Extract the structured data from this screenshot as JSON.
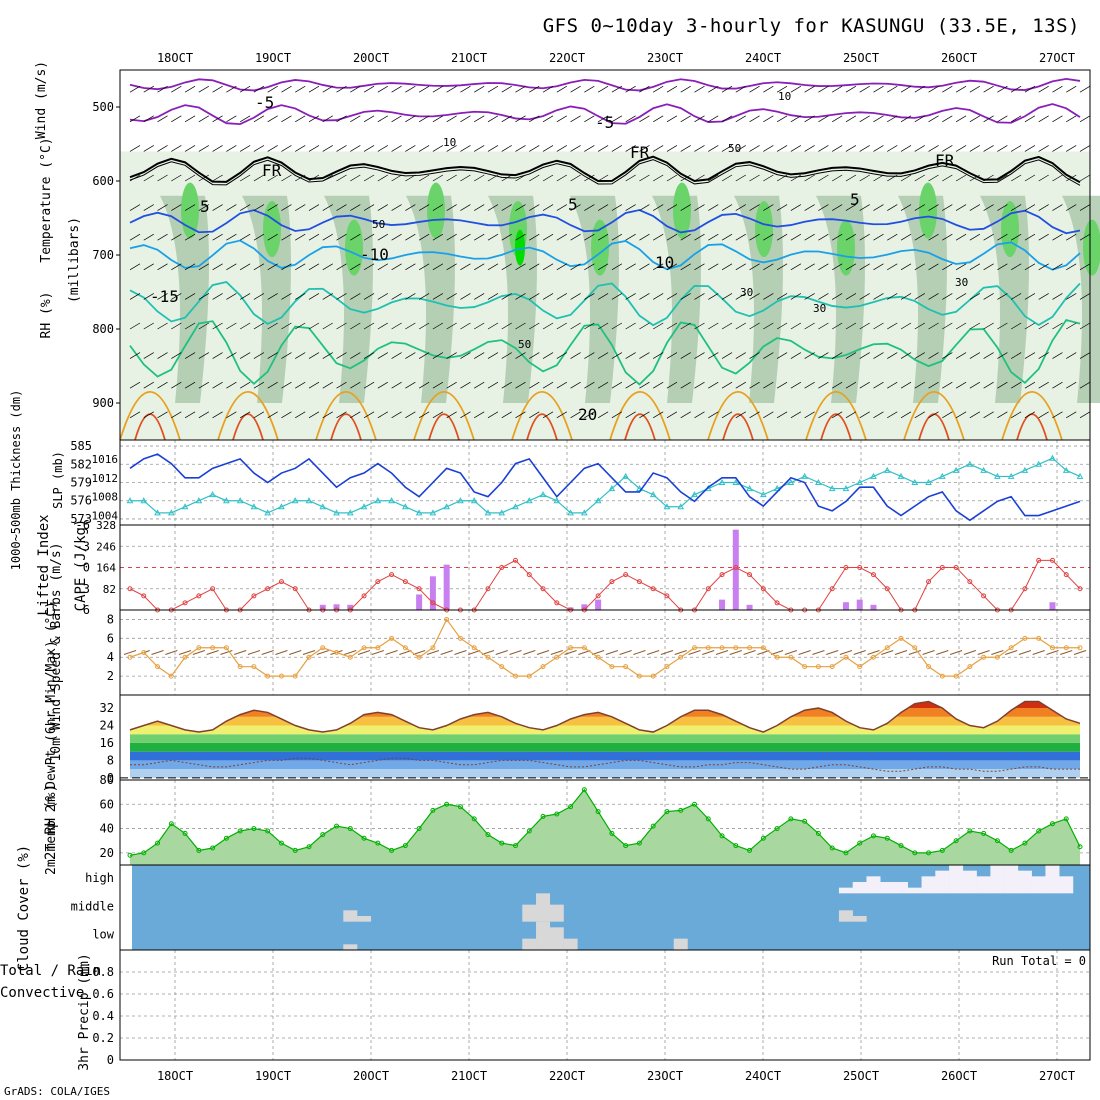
{
  "title": "GFS 0~10day 3-hourly for KASUNGU (33.5E, 13S)",
  "credit": "GrADS: COLA/IGES",
  "colors": {
    "rh_light": "#e7f2e4",
    "rh_mid": "#c5d9c4",
    "rh_dark": "#a9c6a9",
    "rh_green": "#6ad46a",
    "rh_bright": "#00dc00",
    "temp_purple": "#8a1fb8",
    "temp_blue": "#2050e0",
    "temp_lightblue": "#1aa0e8",
    "temp_teal": "#20c0b0",
    "temp_green": "#20c080",
    "temp_orange": "#e8a020",
    "temp_red": "#e05020",
    "fr_line": "#000000",
    "slp": "#1a3fd6",
    "thickness": "#30c0c8",
    "lifted": "#e04040",
    "cape": "#c880f0",
    "wind_speed": "#e8a040",
    "barb": "#8b5a2b",
    "rh2m": "#00b000",
    "cloud": "#6aaad8",
    "cloud_gap": "#d8d8d8"
  },
  "chart_data": [
    {
      "panel": "upper-air",
      "type": "heatmap",
      "date_labels": [
        "18OCT",
        "19OCT",
        "20OCT",
        "21OCT",
        "22OCT",
        "23OCT",
        "24OCT",
        "25OCT",
        "26OCT",
        "27OCT"
      ],
      "ylabel_wind": "Wind (m/s)",
      "ylabel_temp": "Temperature (°C)",
      "ylabel_rh": "RH (%)",
      "ylabel_p": "(millibars)",
      "yticks": [
        500,
        600,
        700,
        800,
        900
      ],
      "ylim": [
        450,
        950
      ],
      "contour_labels": [
        "-5",
        "-5",
        "5",
        "5",
        "5",
        "-10",
        "10",
        "-15",
        "20",
        "FR",
        "FR",
        "FR",
        "10",
        "30",
        "30",
        "30",
        "50",
        "50",
        "50",
        "10"
      ],
      "temp_lines": [
        {
          "label": "-5",
          "color": "purple",
          "base": 470,
          "amp": 8
        },
        {
          "label": "-5",
          "color": "purple",
          "base": 510,
          "amp": 14
        },
        {
          "label": "FR",
          "color": "black",
          "base": 585,
          "amp": 18
        },
        {
          "label": "5",
          "color": "blue",
          "base": 655,
          "amp": 16
        },
        {
          "label": "10",
          "color": "lightblue",
          "base": 700,
          "amp": 20
        },
        {
          "label": "-15",
          "color": "teal",
          "base": 765,
          "amp": 30
        },
        {
          "label": "20",
          "color": "green",
          "base": 830,
          "amp": 45
        }
      ]
    },
    {
      "panel": "slp-thickness",
      "type": "line",
      "ylabel_left": "1000~500mb Thickness (dm)",
      "ylabel_right": "SLP (mb)",
      "yticks_thickness": [
        573,
        576,
        579,
        582,
        585
      ],
      "yticks_slp": [
        1004,
        1008,
        1012,
        1016
      ],
      "ylim_thickness": [
        572,
        586
      ],
      "ylim_slp": [
        1002,
        1020
      ],
      "series": [
        {
          "name": "SLP",
          "axis": "slp",
          "values": [
            1014,
            1016,
            1017,
            1015,
            1012,
            1012,
            1014,
            1015,
            1016,
            1013,
            1011,
            1013,
            1014,
            1016,
            1013,
            1010,
            1012,
            1013,
            1015,
            1013,
            1010,
            1008,
            1011,
            1014,
            1013,
            1009,
            1008,
            1011,
            1015,
            1016,
            1012,
            1008,
            1011,
            1014,
            1015,
            1012,
            1009,
            1009,
            1013,
            1012,
            1009,
            1007,
            1010,
            1012,
            1012,
            1008,
            1006,
            1009,
            1012,
            1011,
            1006,
            1005,
            1007,
            1010,
            1010,
            1006,
            1004,
            1006,
            1008,
            1009,
            1005,
            1003,
            1005,
            1007,
            1008,
            1004,
            1004,
            1005,
            1006,
            1007
          ]
        },
        {
          "name": "Thickness",
          "axis": "thickness",
          "values": [
            576,
            576,
            574,
            574,
            575,
            576,
            577,
            576,
            576,
            575,
            574,
            575,
            576,
            576,
            575,
            574,
            574,
            575,
            576,
            576,
            575,
            574,
            574,
            575,
            576,
            576,
            574,
            574,
            575,
            576,
            577,
            576,
            574,
            574,
            576,
            578,
            580,
            578,
            577,
            575,
            575,
            577,
            578,
            579,
            579,
            578,
            577,
            578,
            579,
            580,
            579,
            578,
            578,
            579,
            580,
            581,
            580,
            579,
            579,
            580,
            581,
            582,
            581,
            580,
            580,
            581,
            582,
            583,
            581,
            580
          ]
        }
      ]
    },
    {
      "panel": "lifted-cape",
      "type": "bar",
      "ylabel_left": "Lifted Index",
      "ylabel_right": "CAPE (J/kg)",
      "yticks_li": [
        "-6",
        "-3",
        "0",
        "3",
        "6"
      ],
      "yticks_cape": [
        "328",
        "246",
        "164",
        "82"
      ],
      "ylim_li": [
        -6,
        6
      ],
      "ylim_cape": [
        0,
        328
      ],
      "series": [
        {
          "name": "Lifted Index",
          "values": [
            3,
            4,
            6,
            6,
            5,
            4,
            3,
            6,
            6,
            4,
            3,
            2,
            3,
            6,
            6,
            6,
            6,
            4,
            2,
            1,
            2,
            3,
            5,
            6,
            6,
            6,
            3,
            0,
            -1,
            1,
            3,
            5,
            6,
            6,
            4,
            2,
            1,
            2,
            3,
            4,
            6,
            6,
            3,
            1,
            0,
            1,
            3,
            5,
            6,
            6,
            6,
            3,
            0,
            0,
            1,
            3,
            6,
            6,
            2,
            0,
            0,
            2,
            4,
            6,
            6,
            3,
            -1,
            -1,
            1,
            3
          ]
        },
        {
          "name": "CAPE",
          "values": [
            0,
            0,
            0,
            0,
            0,
            0,
            0,
            0,
            0,
            0,
            0,
            0,
            0,
            0,
            20,
            22,
            20,
            0,
            0,
            0,
            0,
            60,
            130,
            175,
            0,
            0,
            0,
            0,
            0,
            0,
            0,
            0,
            10,
            22,
            40,
            0,
            0,
            0,
            0,
            0,
            0,
            0,
            0,
            40,
            310,
            20,
            0,
            0,
            0,
            0,
            0,
            0,
            30,
            40,
            20,
            0,
            0,
            0,
            0,
            0,
            0,
            0,
            0,
            0,
            0,
            0,
            0,
            30,
            0,
            0
          ]
        }
      ]
    },
    {
      "panel": "wind",
      "type": "line",
      "ylabel": "10m Wind Speed & Barbs (m/s)",
      "yticks": [
        2,
        4,
        6,
        8
      ],
      "ylim": [
        0,
        9
      ],
      "series": [
        {
          "name": "10m Wind Speed",
          "values": [
            4,
            4.5,
            3,
            2,
            4,
            5,
            5,
            5,
            3,
            3,
            2,
            2,
            2,
            4,
            5,
            4.5,
            4,
            5,
            5,
            6,
            5,
            4,
            5,
            8,
            6,
            5,
            4,
            3,
            2,
            2,
            3,
            4,
            5,
            5,
            4,
            3,
            3,
            2,
            2,
            3,
            4,
            5,
            5,
            5,
            5,
            5,
            5,
            4,
            4,
            3,
            3,
            3,
            4,
            3,
            4,
            5,
            6,
            5,
            3,
            2,
            2,
            3,
            4,
            4,
            5,
            6,
            6,
            5,
            5,
            5
          ]
        },
        {
          "name": "Barb",
          "values": [
            4.5,
            4.5,
            4.5,
            4.5,
            4.5,
            4.5,
            4.5,
            4.5,
            4.5,
            4.5,
            4.5,
            4.5,
            4.5,
            4.5,
            4.5,
            4.5,
            4.5,
            4.5,
            4.5,
            4.5,
            4.5,
            4.5,
            4.5,
            4.5,
            4.5,
            4.5,
            4.5,
            4.5,
            4.5,
            4.5,
            4.5,
            4.5,
            4.5,
            4.5,
            4.5,
            4.5,
            4.5,
            4.5,
            4.5,
            4.5,
            4.5,
            4.5,
            4.5,
            4.5,
            4.5,
            4.5,
            4.5,
            4.5,
            4.5,
            4.5,
            4.5,
            4.5,
            4.5,
            4.5,
            4.5,
            4.5,
            4.5,
            4.5,
            4.5,
            4.5,
            4.5,
            4.5,
            4.5,
            4.5,
            4.5,
            4.5,
            4.5,
            4.5,
            4.5,
            4.5
          ]
        }
      ]
    },
    {
      "panel": "temperature",
      "type": "area",
      "ylabel": "2m Temp 2m DewPt (6hr Min/Max) (°C)",
      "yticks": [
        0,
        8,
        16,
        24,
        32
      ],
      "ylim": [
        -1,
        38
      ],
      "series": [
        {
          "name": "2m Temp",
          "values": [
            22,
            24,
            26,
            24,
            22,
            21,
            22,
            26,
            29,
            31,
            30,
            27,
            24,
            22,
            21,
            22,
            25,
            29,
            30,
            29,
            26,
            23,
            22,
            24,
            27,
            29,
            30,
            28,
            25,
            23,
            22,
            24,
            27,
            29,
            30,
            28,
            25,
            22,
            21,
            24,
            28,
            31,
            31,
            29,
            26,
            23,
            21,
            24,
            28,
            31,
            32,
            30,
            26,
            23,
            22,
            25,
            30,
            34,
            35,
            32,
            27,
            24,
            23,
            26,
            31,
            35,
            35,
            31,
            27,
            25
          ]
        },
        {
          "name": "2m DewPt",
          "values": [
            6,
            6,
            7,
            8,
            7,
            6,
            5,
            5,
            6,
            7,
            8,
            8,
            9,
            9,
            8,
            7,
            6,
            7,
            8,
            9,
            9,
            8,
            8,
            7,
            6,
            6,
            7,
            8,
            8,
            8,
            7,
            6,
            5,
            5,
            6,
            7,
            8,
            8,
            7,
            6,
            5,
            5,
            6,
            6,
            7,
            7,
            6,
            5,
            4,
            4,
            5,
            6,
            6,
            5,
            4,
            3,
            3,
            4,
            5,
            5,
            4,
            4,
            3,
            3,
            4,
            5,
            5,
            4,
            4,
            4
          ]
        }
      ]
    },
    {
      "panel": "rh2m",
      "type": "area",
      "ylabel": "2m RH (%)",
      "yticks": [
        20,
        40,
        60,
        80
      ],
      "ylim": [
        10,
        80
      ],
      "series": [
        {
          "name": "2m RH",
          "values": [
            18,
            20,
            28,
            44,
            36,
            22,
            24,
            32,
            38,
            40,
            38,
            28,
            22,
            25,
            35,
            42,
            40,
            32,
            28,
            22,
            26,
            40,
            55,
            60,
            58,
            48,
            35,
            28,
            26,
            38,
            50,
            52,
            58,
            72,
            54,
            36,
            26,
            28,
            42,
            54,
            55,
            60,
            48,
            34,
            26,
            22,
            32,
            40,
            48,
            46,
            36,
            24,
            20,
            28,
            34,
            32,
            26,
            20,
            20,
            22,
            30,
            38,
            36,
            30,
            22,
            28,
            38,
            44,
            48,
            25
          ]
        }
      ]
    },
    {
      "panel": "cloud",
      "type": "bar",
      "ylabel": "Cloud Cover (%)",
      "row_labels": [
        "high",
        "middle",
        "low"
      ],
      "series": [
        {
          "name": "high",
          "values": [
            0,
            0,
            0,
            0,
            0,
            0,
            0,
            0,
            0,
            0,
            0,
            0,
            0,
            0,
            0,
            0,
            0,
            0,
            0,
            0,
            0,
            0,
            0,
            0,
            0,
            0,
            0,
            0,
            0,
            0,
            0,
            0,
            0,
            0,
            0,
            0,
            0,
            0,
            0,
            0,
            0,
            0,
            0,
            0,
            0,
            0,
            0,
            0,
            0,
            0,
            0,
            0,
            20,
            40,
            60,
            40,
            40,
            20,
            60,
            80,
            100,
            80,
            60,
            100,
            100,
            80,
            60,
            100,
            60,
            0
          ]
        },
        {
          "name": "middle",
          "values": [
            0,
            0,
            0,
            0,
            0,
            0,
            0,
            0,
            0,
            0,
            0,
            0,
            0,
            0,
            0,
            0,
            40,
            20,
            0,
            0,
            0,
            0,
            0,
            0,
            0,
            0,
            0,
            0,
            0,
            60,
            100,
            60,
            0,
            0,
            0,
            0,
            0,
            0,
            0,
            0,
            0,
            0,
            0,
            0,
            0,
            0,
            0,
            0,
            0,
            0,
            0,
            0,
            40,
            20,
            0,
            0,
            0,
            0,
            0,
            0,
            0,
            0,
            0,
            0,
            0,
            0,
            0,
            0,
            0,
            0
          ]
        },
        {
          "name": "low",
          "values": [
            0,
            0,
            0,
            0,
            0,
            0,
            0,
            0,
            0,
            0,
            0,
            0,
            0,
            0,
            0,
            0,
            20,
            0,
            0,
            0,
            0,
            0,
            0,
            0,
            0,
            0,
            0,
            0,
            0,
            40,
            100,
            80,
            40,
            0,
            0,
            0,
            0,
            0,
            0,
            0,
            40,
            0,
            0,
            0,
            0,
            0,
            0,
            0,
            0,
            0,
            0,
            0,
            0,
            0,
            0,
            0,
            0,
            0,
            0,
            0,
            0,
            0,
            0,
            0,
            0,
            0,
            0,
            0,
            0,
            0
          ]
        }
      ]
    },
    {
      "panel": "precip",
      "type": "bar",
      "ylabel_left": "Total / Rain",
      "ylabel_left2": "Convective",
      "ylabel": "3hr Precip (mm)",
      "run_total": "Run Total = 0",
      "yticks": [
        "0",
        "0.2",
        "0.4",
        "0.6",
        "0.8"
      ],
      "ylim": [
        0,
        1
      ],
      "series": [
        {
          "name": "Total",
          "values": []
        }
      ]
    }
  ]
}
